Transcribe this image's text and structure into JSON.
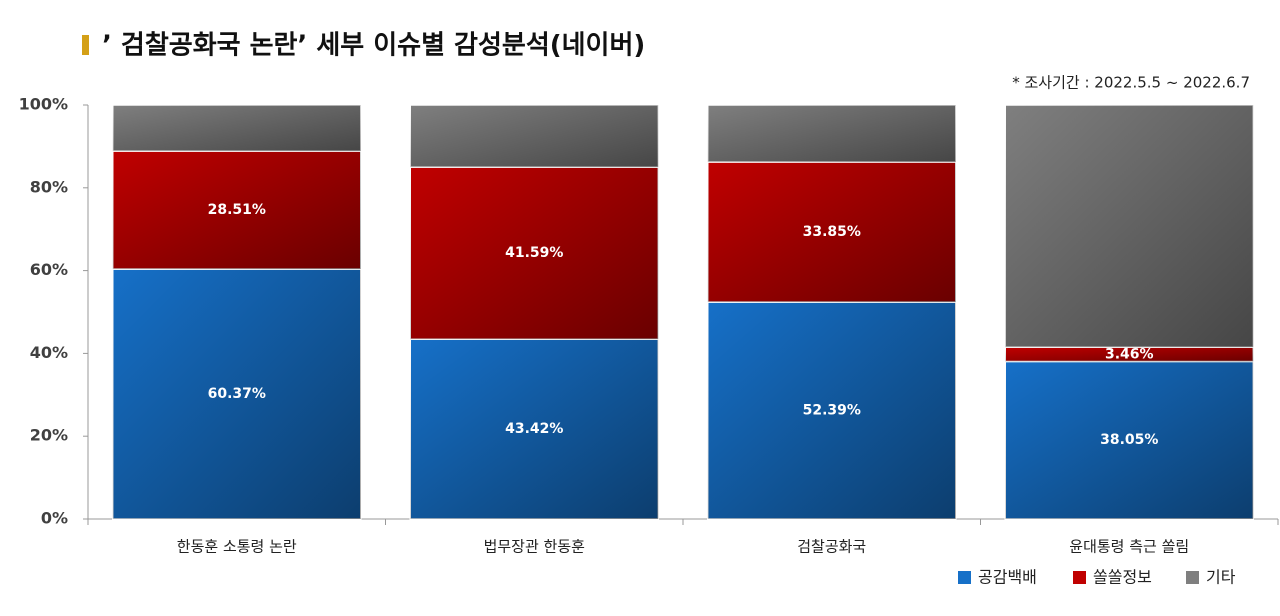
{
  "chart_data": {
    "type": "stacked-bar",
    "title": "’ 검찰공화국 논란’ 세부 이슈별 감성분석(네이버)",
    "subtitle": "* 조사기간 : 2022.5.5 ~ 2022.6.7",
    "categories": [
      "한동훈 소통령 논란",
      "법무장관 한동훈",
      "검찰공화국",
      "윤대통령 측근 쏠림"
    ],
    "series": [
      {
        "name": "공감백배",
        "color": "#1670c8",
        "values": [
          60.37,
          43.42,
          52.39,
          38.05
        ],
        "value_labels": [
          "60.37%",
          "43.42%",
          "52.39%",
          "38.05%"
        ]
      },
      {
        "name": "쏠쏠정보",
        "color": "#c00000",
        "values": [
          28.51,
          41.59,
          33.85,
          3.46
        ],
        "value_labels": [
          "28.51%",
          "41.59%",
          "33.85%",
          "3.46%"
        ]
      },
      {
        "name": "기타",
        "color": "#7f7f7f",
        "values": [
          11.12,
          14.99,
          13.76,
          58.49
        ]
      }
    ],
    "ylim": [
      0,
      100
    ],
    "yticks": [
      {
        "value": 0,
        "label": "0%"
      },
      {
        "value": 20,
        "label": "20%"
      },
      {
        "value": 40,
        "label": "40%"
      },
      {
        "value": 60,
        "label": "60%"
      },
      {
        "value": 80,
        "label": "80%"
      },
      {
        "value": 100,
        "label": "100%"
      }
    ]
  }
}
